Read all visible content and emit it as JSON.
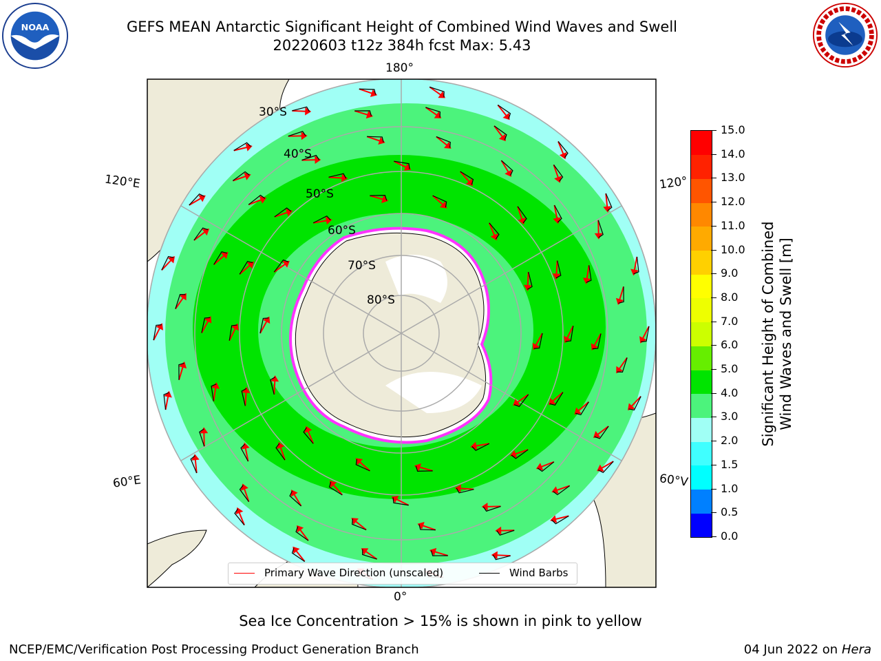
{
  "header": {
    "title_line1": "GEFS MEAN Antarctic Significant Height of Combined Wind Waves and Swell",
    "title_line2": "20220603 t12z 384h fcst   Max: 5.43"
  },
  "logos": {
    "left": "NOAA",
    "right": "NATIONAL WEATHER SERVICE"
  },
  "map": {
    "projection": "south-polar-stereographic",
    "longitude_labels": {
      "top": "180°",
      "bottom": "0°",
      "upper_left": "120°E",
      "lower_left": "60°E",
      "upper_right": "120°",
      "lower_right": "60°V"
    },
    "latitude_labels": [
      "30°S",
      "40°S",
      "50°S",
      "60°S",
      "70°S",
      "80°S"
    ],
    "colors": {
      "land": "#eeebd9",
      "ocean_low": "#a0fff5",
      "band_3_4": "#4cf37c",
      "band_4_5": "#00e400",
      "antarctica": "#ffffff",
      "sea_ice_edge": "#ff33ff",
      "grid": "#aaaaaa",
      "arrows": "#ff0000",
      "barbs": "#000000"
    }
  },
  "colorbar": {
    "label_line1": "Significant Height of Combined",
    "label_line2": "Wind Waves and Swell [m]",
    "ticks": [
      "15.0",
      "14.0",
      "13.0",
      "12.0",
      "11.0",
      "10.0",
      "9.0",
      "8.0",
      "7.0",
      "6.0",
      "5.0",
      "4.0",
      "3.0",
      "2.0",
      "1.5",
      "1.0",
      "0.5",
      "0.0"
    ],
    "colors": [
      "#0000ff",
      "#0080ff",
      "#00ffff",
      "#40ffff",
      "#a0fff5",
      "#4cf37c",
      "#00e400",
      "#66ee00",
      "#ccff00",
      "#eeff00",
      "#ffff00",
      "#ffd000",
      "#ffaa00",
      "#ff8800",
      "#ff5500",
      "#ff2200",
      "#ff0000"
    ]
  },
  "legend": {
    "wave_label": "Primary Wave Direction (unscaled)",
    "barb_label": "Wind Barbs",
    "wave_color": "#ff0000",
    "barb_color": "#000000"
  },
  "note": "Sea Ice Concentration > 15% is shown in pink to yellow",
  "footer": {
    "left": "NCEP/EMC/Verification Post Processing Product Generation Branch",
    "right_date": "04 Jun 2022 on",
    "right_host": "Hera"
  }
}
